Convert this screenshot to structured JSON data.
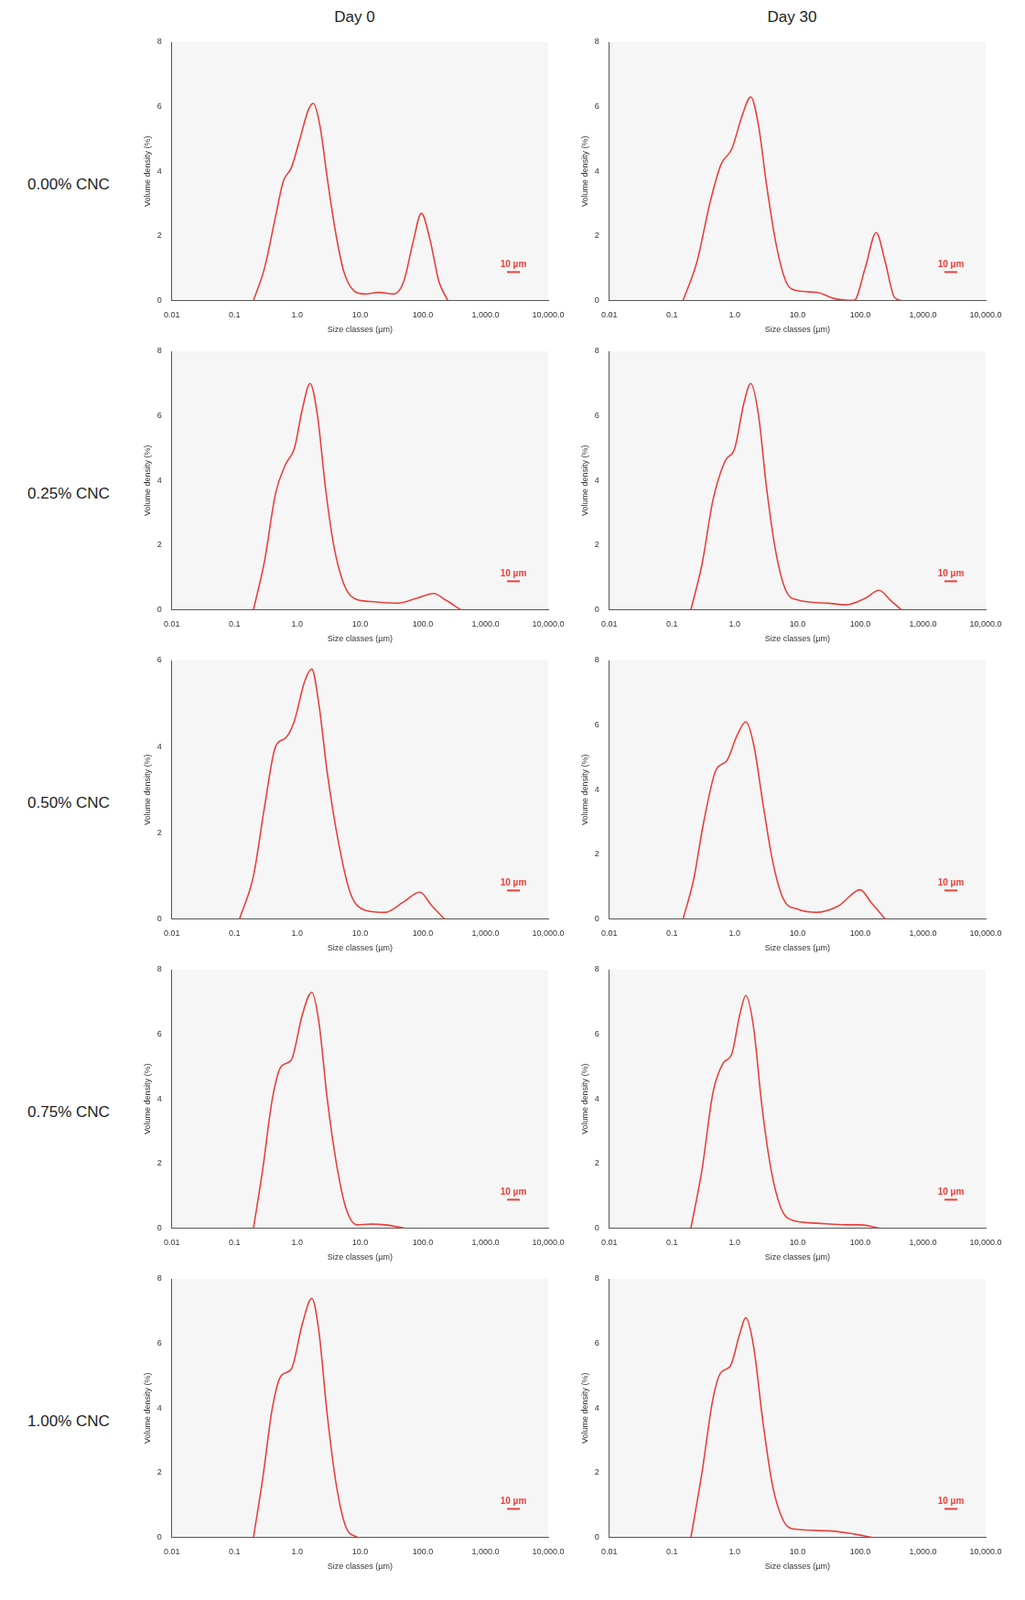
{
  "figure": {
    "column_headers": [
      "Day 0",
      "Day 30"
    ],
    "row_labels": [
      "0.00% CNC",
      "0.25% CNC",
      "0.50% CNC",
      "0.75% CNC",
      "1.00% CNC"
    ],
    "scale_bar": "10 µm"
  },
  "chart_data": [
    {
      "type": "line",
      "x_label": "Size classes (µm)",
      "y_label": "Volume density (%)",
      "log": "x",
      "grid": false,
      "color": "#e8413c",
      "xlim": [
        0.01,
        10000
      ],
      "xticks": [
        0.01,
        0.1,
        {
          "value": 1,
          "label": "1.0"
        },
        {
          "value": 10,
          "label": "10.0"
        },
        {
          "value": 100,
          "label": "100.0"
        },
        {
          "value": 1000,
          "label": "1,000.0"
        },
        {
          "value": 10000,
          "label": "10,000.0"
        }
      ],
      "ylim": [
        0,
        8
      ],
      "yticks": [
        0,
        2,
        4,
        6,
        8
      ],
      "x": [
        0.2,
        0.3,
        0.45,
        0.6,
        0.8,
        1.1,
        1.5,
        1.8,
        2.3,
        3,
        4,
        5.5,
        8,
        12,
        20,
        35,
        50,
        70,
        95,
        130,
        180,
        250
      ],
      "values": [
        0,
        1.0,
        2.6,
        3.7,
        4.1,
        5.0,
        5.9,
        6.1,
        5.4,
        3.8,
        2.2,
        0.9,
        0.3,
        0.2,
        0.25,
        0.2,
        0.6,
        1.8,
        2.7,
        1.9,
        0.6,
        0
      ]
    },
    {
      "type": "line",
      "x_label": "Size classes (µm)",
      "y_label": "Volume density (%)",
      "log": "x",
      "grid": false,
      "color": "#e8413c",
      "xlim": [
        0.01,
        10000
      ],
      "xticks": [
        0.01,
        0.1,
        {
          "value": 1,
          "label": "1.0"
        },
        {
          "value": 10,
          "label": "10.0"
        },
        {
          "value": 100,
          "label": "100.0"
        },
        {
          "value": 1000,
          "label": "1,000.0"
        },
        {
          "value": 10000,
          "label": "10,000.0"
        }
      ],
      "ylim": [
        0,
        8
      ],
      "yticks": [
        0,
        2,
        4,
        6,
        8
      ],
      "x": [
        0.15,
        0.25,
        0.4,
        0.6,
        0.9,
        1.3,
        1.8,
        2.4,
        3.2,
        4.5,
        6.5,
        10,
        20,
        40,
        80,
        120,
        180,
        250,
        350,
        450
      ],
      "values": [
        0,
        1.2,
        3.0,
        4.2,
        4.7,
        5.7,
        6.3,
        5.4,
        3.6,
        1.8,
        0.6,
        0.3,
        0.25,
        0.05,
        0,
        1.0,
        2.1,
        1.2,
        0.1,
        0
      ]
    },
    {
      "type": "line",
      "x_label": "Size classes (µm)",
      "y_label": "Volume density (%)",
      "log": "x",
      "grid": false,
      "color": "#e8413c",
      "xlim": [
        0.01,
        10000
      ],
      "xticks": [
        0.01,
        0.1,
        {
          "value": 1,
          "label": "1.0"
        },
        {
          "value": 10,
          "label": "10.0"
        },
        {
          "value": 100,
          "label": "100.0"
        },
        {
          "value": 1000,
          "label": "1,000.0"
        },
        {
          "value": 10000,
          "label": "10,000.0"
        }
      ],
      "ylim": [
        0,
        8
      ],
      "yticks": [
        0,
        2,
        4,
        6,
        8
      ],
      "x": [
        0.2,
        0.3,
        0.45,
        0.65,
        0.9,
        1.2,
        1.6,
        2.1,
        2.8,
        3.8,
        5.5,
        8,
        15,
        40,
        80,
        150,
        230,
        400
      ],
      "values": [
        0,
        1.5,
        3.6,
        4.5,
        5.0,
        6.2,
        7.0,
        6.0,
        3.8,
        2.0,
        0.8,
        0.35,
        0.25,
        0.2,
        0.35,
        0.5,
        0.3,
        0
      ]
    },
    {
      "type": "line",
      "x_label": "Size classes (µm)",
      "y_label": "Volume density (%)",
      "log": "x",
      "grid": false,
      "color": "#e8413c",
      "xlim": [
        0.01,
        10000
      ],
      "xticks": [
        0.01,
        0.1,
        {
          "value": 1,
          "label": "1.0"
        },
        {
          "value": 10,
          "label": "10.0"
        },
        {
          "value": 100,
          "label": "100.0"
        },
        {
          "value": 1000,
          "label": "1,000.0"
        },
        {
          "value": 10000,
          "label": "10,000.0"
        }
      ],
      "ylim": [
        0,
        8
      ],
      "yticks": [
        0,
        2,
        4,
        6,
        8
      ],
      "x": [
        0.2,
        0.3,
        0.45,
        0.7,
        1.0,
        1.4,
        1.8,
        2.4,
        3.2,
        4.5,
        6.5,
        10,
        30,
        60,
        120,
        200,
        300,
        450
      ],
      "values": [
        0,
        1.4,
        3.4,
        4.6,
        5.0,
        6.4,
        7.0,
        6.0,
        3.8,
        1.8,
        0.6,
        0.3,
        0.2,
        0.15,
        0.35,
        0.6,
        0.3,
        0
      ]
    },
    {
      "type": "line",
      "x_label": "Size classes (µm)",
      "y_label": "Volume density (%)",
      "log": "x",
      "grid": false,
      "color": "#e8413c",
      "xlim": [
        0.01,
        10000
      ],
      "xticks": [
        0.01,
        0.1,
        {
          "value": 1,
          "label": "1.0"
        },
        {
          "value": 10,
          "label": "10.0"
        },
        {
          "value": 100,
          "label": "100.0"
        },
        {
          "value": 1000,
          "label": "1,000.0"
        },
        {
          "value": 10000,
          "label": "10,000.0"
        }
      ],
      "ylim": [
        0,
        6
      ],
      "yticks": [
        0,
        2,
        4,
        6
      ],
      "x": [
        0.12,
        0.2,
        0.3,
        0.45,
        0.65,
        0.9,
        1.3,
        1.7,
        2.2,
        3,
        4.5,
        7,
        12,
        25,
        50,
        90,
        140,
        220
      ],
      "values": [
        0,
        1.0,
        2.6,
        4.0,
        4.2,
        4.6,
        5.5,
        5.8,
        5.0,
        3.4,
        1.8,
        0.6,
        0.2,
        0.15,
        0.4,
        0.62,
        0.3,
        0
      ]
    },
    {
      "type": "line",
      "x_label": "Size classes (µm)",
      "y_label": "Volume density (%)",
      "log": "x",
      "grid": false,
      "color": "#e8413c",
      "xlim": [
        0.01,
        10000
      ],
      "xticks": [
        0.01,
        0.1,
        {
          "value": 1,
          "label": "1.0"
        },
        {
          "value": 10,
          "label": "10.0"
        },
        {
          "value": 100,
          "label": "100.0"
        },
        {
          "value": 1000,
          "label": "1,000.0"
        },
        {
          "value": 10000,
          "label": "10,000.0"
        }
      ],
      "ylim": [
        0,
        8
      ],
      "yticks": [
        0,
        2,
        4,
        6,
        8
      ],
      "x": [
        0.15,
        0.22,
        0.32,
        0.5,
        0.75,
        1.1,
        1.5,
        2.0,
        2.8,
        4,
        6,
        10,
        20,
        45,
        100,
        150,
        250
      ],
      "values": [
        0,
        1.2,
        3.0,
        4.6,
        4.9,
        5.7,
        6.1,
        5.4,
        3.6,
        1.8,
        0.6,
        0.3,
        0.2,
        0.4,
        0.9,
        0.5,
        0
      ]
    },
    {
      "type": "line",
      "x_label": "Size classes (µm)",
      "y_label": "Volume density (%)",
      "log": "x",
      "grid": false,
      "color": "#e8413c",
      "xlim": [
        0.01,
        10000
      ],
      "xticks": [
        0.01,
        0.1,
        {
          "value": 1,
          "label": "1.0"
        },
        {
          "value": 10,
          "label": "10.0"
        },
        {
          "value": 100,
          "label": "100.0"
        },
        {
          "value": 1000,
          "label": "1,000.0"
        },
        {
          "value": 10000,
          "label": "10,000.0"
        }
      ],
      "ylim": [
        0,
        8
      ],
      "yticks": [
        0,
        2,
        4,
        6,
        8
      ],
      "x": [
        0.2,
        0.28,
        0.4,
        0.55,
        0.8,
        1.2,
        1.7,
        2.2,
        3,
        4.2,
        6,
        9,
        15,
        25,
        50
      ],
      "values": [
        0,
        1.8,
        4.0,
        5.0,
        5.2,
        6.6,
        7.3,
        6.4,
        4.0,
        2.0,
        0.6,
        0.1,
        0.12,
        0.1,
        0
      ]
    },
    {
      "type": "line",
      "x_label": "Size classes (µm)",
      "y_label": "Volume density (%)",
      "log": "x",
      "grid": false,
      "color": "#e8413c",
      "xlim": [
        0.01,
        10000
      ],
      "xticks": [
        0.01,
        0.1,
        {
          "value": 1,
          "label": "1.0"
        },
        {
          "value": 10,
          "label": "10.0"
        },
        {
          "value": 100,
          "label": "100.0"
        },
        {
          "value": 1000,
          "label": "1,000.0"
        },
        {
          "value": 10000,
          "label": "10,000.0"
        }
      ],
      "ylim": [
        0,
        8
      ],
      "yticks": [
        0,
        2,
        4,
        6,
        8
      ],
      "x": [
        0.2,
        0.3,
        0.45,
        0.65,
        0.9,
        1.2,
        1.5,
        2.0,
        2.7,
        3.8,
        5.5,
        8,
        20,
        60,
        100,
        200
      ],
      "values": [
        0,
        1.8,
        4.2,
        5.1,
        5.4,
        6.6,
        7.2,
        6.2,
        3.8,
        1.8,
        0.6,
        0.25,
        0.15,
        0.1,
        0.1,
        0
      ]
    },
    {
      "type": "line",
      "x_label": "Size classes (µm)",
      "y_label": "Volume density (%)",
      "log": "x",
      "grid": false,
      "color": "#e8413c",
      "xlim": [
        0.01,
        10000
      ],
      "xticks": [
        0.01,
        0.1,
        {
          "value": 1,
          "label": "1.0"
        },
        {
          "value": 10,
          "label": "10.0"
        },
        {
          "value": 100,
          "label": "100.0"
        },
        {
          "value": 1000,
          "label": "1,000.0"
        },
        {
          "value": 10000,
          "label": "10,000.0"
        }
      ],
      "ylim": [
        0,
        8
      ],
      "yticks": [
        0,
        2,
        4,
        6,
        8
      ],
      "x": [
        0.2,
        0.28,
        0.4,
        0.55,
        0.8,
        1.2,
        1.7,
        2.2,
        3,
        4.2,
        6,
        9
      ],
      "values": [
        0,
        1.8,
        4.0,
        5.0,
        5.2,
        6.6,
        7.4,
        6.4,
        3.8,
        1.6,
        0.3,
        0
      ]
    },
    {
      "type": "line",
      "x_label": "Size classes (µm)",
      "y_label": "Volume density (%)",
      "log": "x",
      "grid": false,
      "color": "#e8413c",
      "xlim": [
        0.01,
        10000
      ],
      "xticks": [
        0.01,
        0.1,
        {
          "value": 1,
          "label": "1.0"
        },
        {
          "value": 10,
          "label": "10.0"
        },
        {
          "value": 100,
          "label": "100.0"
        },
        {
          "value": 1000,
          "label": "1,000.0"
        },
        {
          "value": 10000,
          "label": "10,000.0"
        }
      ],
      "ylim": [
        0,
        8
      ],
      "yticks": [
        0,
        2,
        4,
        6,
        8
      ],
      "x": [
        0.2,
        0.3,
        0.45,
        0.6,
        0.85,
        1.2,
        1.5,
        2.0,
        2.8,
        4,
        6,
        9,
        30,
        80,
        150
      ],
      "values": [
        0,
        2.0,
        4.3,
        5.1,
        5.3,
        6.3,
        6.8,
        5.9,
        3.6,
        1.6,
        0.5,
        0.25,
        0.2,
        0.1,
        0
      ]
    }
  ]
}
